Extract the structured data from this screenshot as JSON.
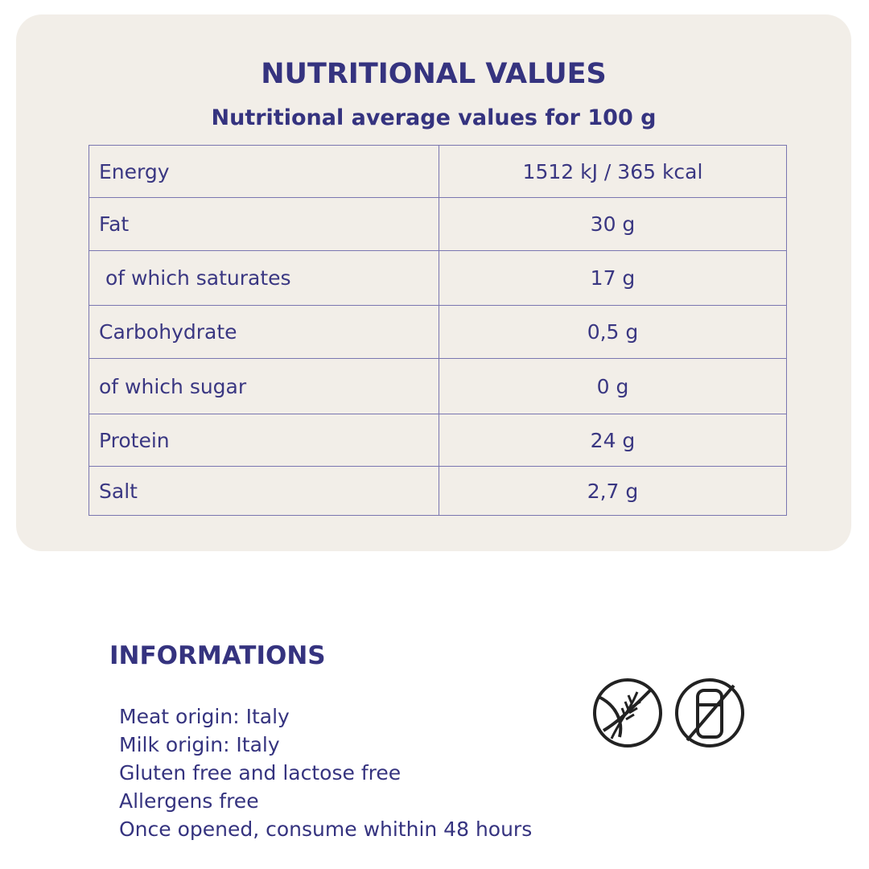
{
  "header": {
    "title": "NUTRITIONAL VALUES",
    "subtitle": "Nutritional average values for 100 g"
  },
  "table": {
    "rows": [
      [
        "Energy",
        "1512 kJ / 365 kcal"
      ],
      [
        "Fat",
        "30 g"
      ],
      [
        " of which saturates",
        "17 g"
      ],
      [
        "Carbohydrate",
        "0,5 g"
      ],
      [
        "of which sugar",
        "0 g"
      ],
      [
        "Protein",
        "24 g"
      ],
      [
        "Salt",
        "2,7 g"
      ]
    ]
  },
  "info": {
    "title": "INFORMATIONS",
    "lines": [
      "Meat origin: Italy",
      "Milk origin: Italy",
      "Gluten free and lactose free",
      "Allergens free",
      "Once opened, consume whithin 48 hours"
    ]
  }
}
